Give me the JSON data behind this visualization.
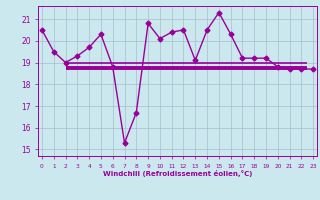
{
  "title": "",
  "xlabel": "Windchill (Refroidissement éolien,°C)",
  "bg_color": "#cce8ef",
  "plot_bg_color": "#cce8ef",
  "grid_color": "#aabccc",
  "line_color": "#990099",
  "hours": [
    0,
    1,
    2,
    3,
    4,
    5,
    6,
    7,
    8,
    9,
    10,
    11,
    12,
    13,
    14,
    15,
    16,
    17,
    18,
    19,
    20,
    21,
    22,
    23
  ],
  "windchill": [
    20.5,
    19.5,
    19.0,
    19.3,
    19.7,
    20.3,
    18.8,
    15.3,
    16.7,
    20.8,
    20.1,
    20.4,
    20.5,
    19.1,
    20.5,
    21.3,
    20.3,
    19.2,
    19.2,
    19.2,
    18.8,
    18.7,
    18.7,
    18.7
  ],
  "hline1_y": 19.0,
  "hline2_y": 18.75,
  "hline1_xstart": 2,
  "hline1_xend": 22.5,
  "hline2_xstart": 2,
  "hline2_xend": 22.5,
  "ylim": [
    14.7,
    21.6
  ],
  "yticks": [
    15,
    16,
    17,
    18,
    19,
    20,
    21
  ],
  "xticks": [
    0,
    1,
    2,
    3,
    4,
    5,
    6,
    7,
    8,
    9,
    10,
    11,
    12,
    13,
    14,
    15,
    16,
    17,
    18,
    19,
    20,
    21,
    22,
    23
  ],
  "xlim": [
    -0.3,
    23.3
  ],
  "marker": "D",
  "markersize": 2.5,
  "linewidth": 1.0,
  "hline1_lw": 1.2,
  "hline2_lw": 2.8,
  "xlabel_fontsize": 5.0,
  "xtick_fontsize": 4.2,
  "ytick_fontsize": 5.5
}
